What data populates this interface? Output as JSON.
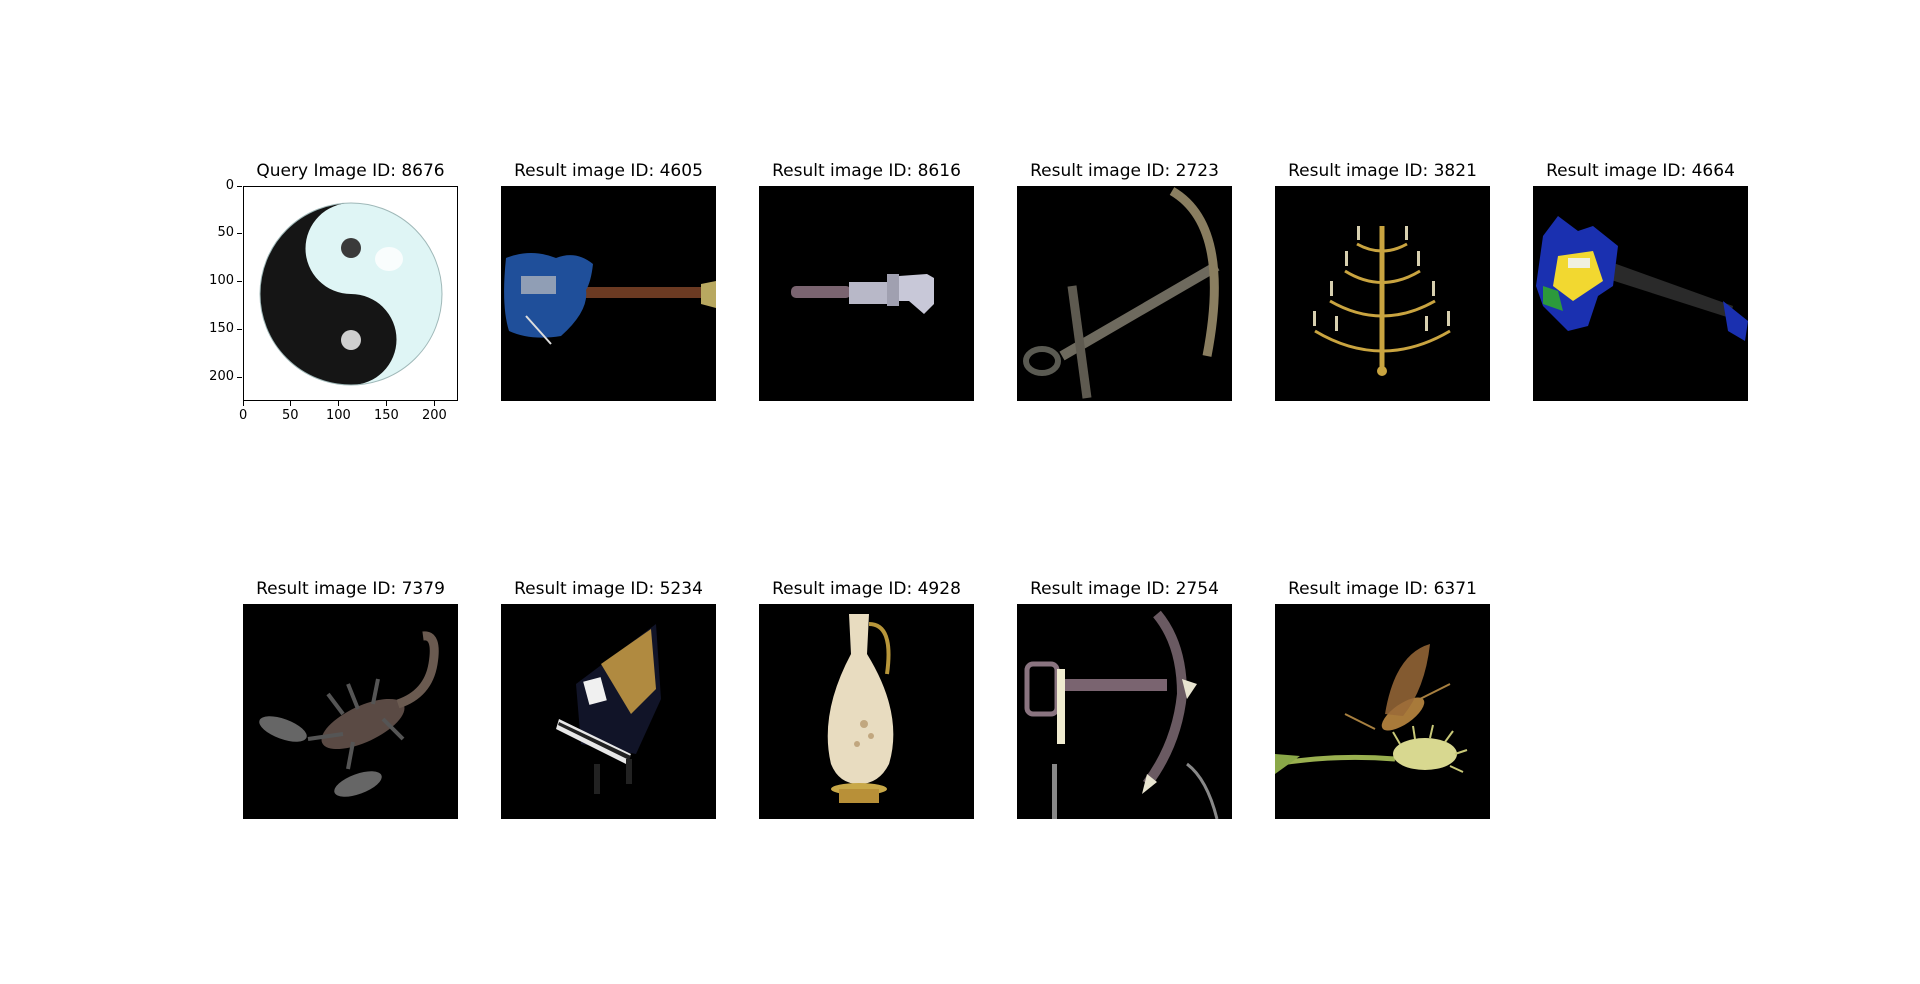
{
  "query": {
    "title": "Query Image ID: 8676",
    "y_ticks": [
      "0",
      "50",
      "100",
      "150",
      "200"
    ],
    "x_ticks": [
      "0",
      "50",
      "100",
      "150",
      "200"
    ],
    "image_icon": "yin-yang-icon"
  },
  "results": [
    {
      "title": "Result image ID: 4605",
      "image_icon": "electric-guitar-icon"
    },
    {
      "title": "Result image ID: 8616",
      "image_icon": "wrench-icon"
    },
    {
      "title": "Result image ID: 2723",
      "image_icon": "anchor-icon"
    },
    {
      "title": "Result image ID: 3821",
      "image_icon": "chandelier-icon"
    },
    {
      "title": "Result image ID: 4664",
      "image_icon": "colorful-guitar-icon"
    },
    {
      "title": "Result image ID: 7379",
      "image_icon": "scorpion-icon"
    },
    {
      "title": "Result image ID: 5234",
      "image_icon": "grand-piano-icon"
    },
    {
      "title": "Result image ID: 4928",
      "image_icon": "ornate-vase-icon"
    },
    {
      "title": "Result image ID: 2754",
      "image_icon": "pickaxe-icon"
    },
    {
      "title": "Result image ID: 6371",
      "image_icon": "insect-on-plant-icon"
    }
  ]
}
